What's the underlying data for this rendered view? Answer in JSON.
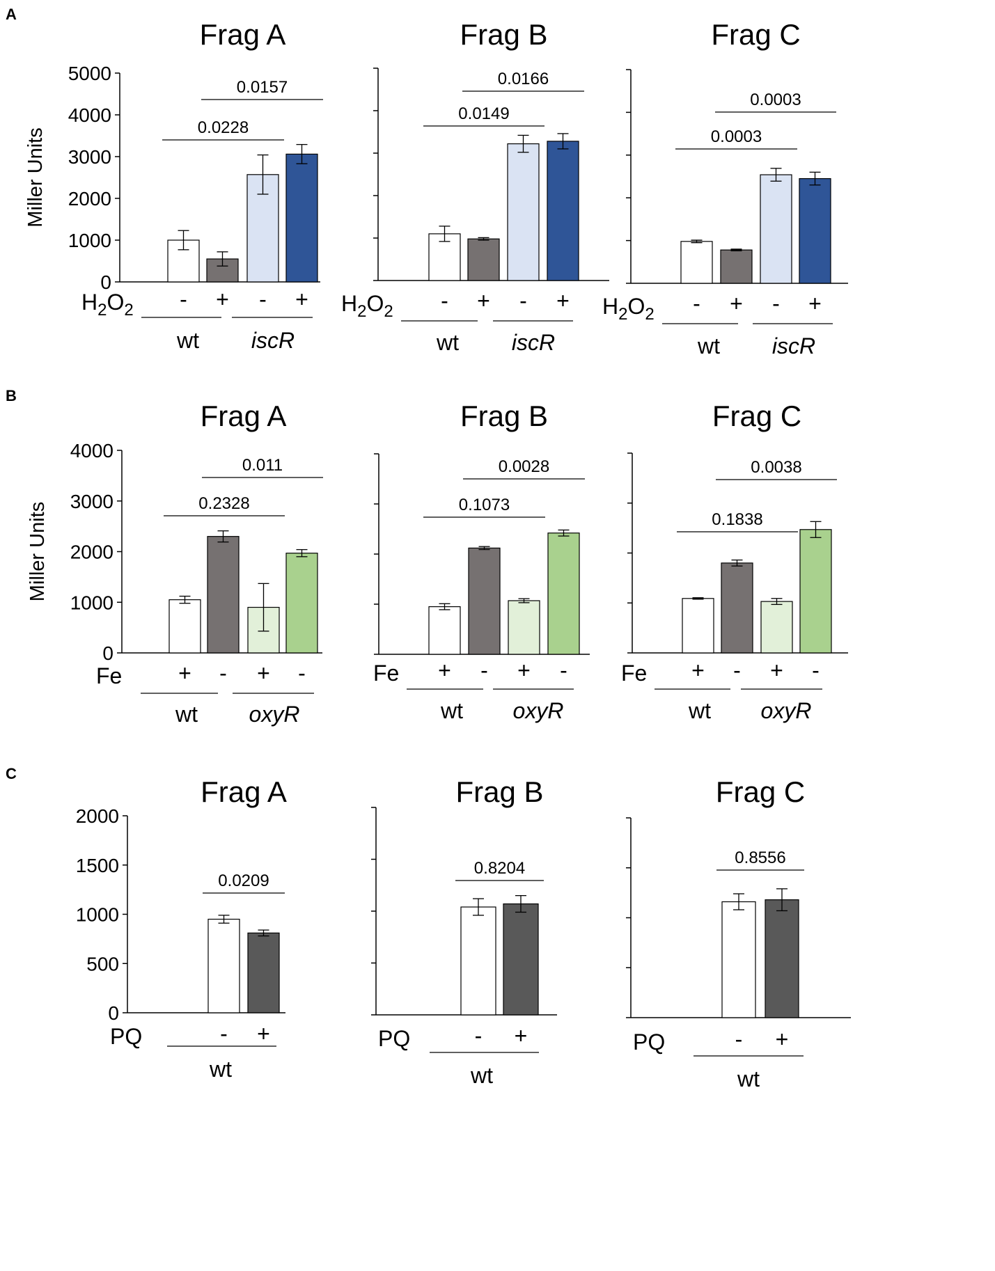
{
  "panels": [
    {
      "letter": "A",
      "condition": "H2O2",
      "signs": [
        "-",
        "+",
        "-",
        "+"
      ],
      "genotypes": [
        "wt",
        "iscR"
      ],
      "ylabel": "Miller Units"
    },
    {
      "letter": "B",
      "condition": "Fe",
      "signs": [
        "+",
        "-",
        "+",
        "-"
      ],
      "genotypes": [
        "wt",
        "oxyR"
      ],
      "ylabel": "Miller Units"
    },
    {
      "letter": "C",
      "condition": "PQ",
      "signs": [
        "-",
        "+"
      ],
      "genotypes": [
        "wt"
      ],
      "ylabel": ""
    }
  ],
  "colors": {
    "white": "#ffffff",
    "gray": "#767171",
    "darkgray": "#595959",
    "lightblue": "#dae3f3",
    "blue": "#2f5597",
    "lightgreen": "#e2f0d9",
    "green": "#a9d18e"
  },
  "chart_data": [
    {
      "panel": "A",
      "type": "bar",
      "title": "Frag A",
      "ylabel": "Miller Units",
      "ylim": [
        0,
        5000
      ],
      "yticks": [
        0,
        1000,
        2000,
        3000,
        4000,
        5000
      ],
      "show_tick_labels": true,
      "categories": [
        "wt -",
        "wt +",
        "iscR -",
        "iscR +"
      ],
      "values": [
        1000,
        550,
        2570,
        3060
      ],
      "errors": [
        230,
        170,
        470,
        230
      ],
      "fills": [
        "white",
        "gray",
        "lightblue",
        "blue"
      ],
      "comparisons": [
        {
          "from": 0,
          "to": 2,
          "label": "0.0228"
        },
        {
          "from": 1,
          "to": 3,
          "label": "0.0157"
        }
      ]
    },
    {
      "panel": "A",
      "type": "bar",
      "title": "Frag B",
      "ylabel": "",
      "ylim": [
        0,
        5000
      ],
      "yticks": [
        0,
        1000,
        2000,
        3000,
        4000,
        5000
      ],
      "show_tick_labels": false,
      "categories": [
        "wt -",
        "wt +",
        "iscR -",
        "iscR +"
      ],
      "values": [
        1100,
        980,
        3220,
        3280
      ],
      "errors": [
        180,
        30,
        200,
        180
      ],
      "fills": [
        "white",
        "gray",
        "lightblue",
        "blue"
      ],
      "comparisons": [
        {
          "from": 0,
          "to": 2,
          "label": "0.0149"
        },
        {
          "from": 1,
          "to": 3,
          "label": "0.0166"
        }
      ]
    },
    {
      "panel": "A",
      "type": "bar",
      "title": "Frag C",
      "ylabel": "",
      "ylim": [
        0,
        5000
      ],
      "yticks": [
        0,
        1000,
        2000,
        3000,
        4000,
        5000
      ],
      "show_tick_labels": false,
      "categories": [
        "wt -",
        "wt +",
        "iscR -",
        "iscR +"
      ],
      "values": [
        980,
        780,
        2540,
        2450
      ],
      "errors": [
        30,
        20,
        150,
        150
      ],
      "fills": [
        "white",
        "gray",
        "lightblue",
        "blue"
      ],
      "comparisons": [
        {
          "from": 0,
          "to": 2,
          "label": "0.0003"
        },
        {
          "from": 1,
          "to": 3,
          "label": "0.0003"
        }
      ]
    },
    {
      "panel": "B",
      "type": "bar",
      "title": "Frag A",
      "ylabel": "Miller Units",
      "ylim": [
        0,
        4000
      ],
      "yticks": [
        0,
        1000,
        2000,
        3000,
        4000
      ],
      "show_tick_labels": true,
      "categories": [
        "wt +",
        "wt -",
        "oxyR +",
        "oxyR -"
      ],
      "values": [
        1050,
        2300,
        900,
        1970
      ],
      "errors": [
        70,
        110,
        470,
        70
      ],
      "fills": [
        "white",
        "gray",
        "lightgreen",
        "green"
      ],
      "comparisons": [
        {
          "from": 0,
          "to": 2,
          "label": "0.2328"
        },
        {
          "from": 1,
          "to": 3,
          "label": "0.011"
        }
      ]
    },
    {
      "panel": "B",
      "type": "bar",
      "title": "Frag B",
      "ylabel": "",
      "ylim": [
        0,
        4000
      ],
      "yticks": [
        0,
        1000,
        2000,
        3000,
        4000
      ],
      "show_tick_labels": false,
      "categories": [
        "wt +",
        "wt -",
        "oxyR +",
        "oxyR -"
      ],
      "values": [
        950,
        2120,
        1070,
        2420
      ],
      "errors": [
        60,
        30,
        40,
        60
      ],
      "fills": [
        "white",
        "gray",
        "lightgreen",
        "green"
      ],
      "comparisons": [
        {
          "from": 0,
          "to": 2,
          "label": "0.1073"
        },
        {
          "from": 1,
          "to": 3,
          "label": "0.0028"
        }
      ]
    },
    {
      "panel": "B",
      "type": "bar",
      "title": "Frag C",
      "ylabel": "",
      "ylim": [
        0,
        4000
      ],
      "yticks": [
        0,
        1000,
        2000,
        3000,
        4000
      ],
      "show_tick_labels": false,
      "categories": [
        "wt +",
        "wt -",
        "oxyR +",
        "oxyR -"
      ],
      "values": [
        1090,
        1800,
        1030,
        2470
      ],
      "errors": [
        15,
        60,
        60,
        160
      ],
      "fills": [
        "white",
        "gray",
        "lightgreen",
        "green"
      ],
      "comparisons": [
        {
          "from": 0,
          "to": 2,
          "label": "0.1838"
        },
        {
          "from": 1,
          "to": 3,
          "label": "0.0038"
        }
      ]
    },
    {
      "panel": "C",
      "type": "bar",
      "title": "Frag A",
      "ylabel": "",
      "ylim": [
        0,
        2000
      ],
      "yticks": [
        0,
        500,
        1000,
        1500,
        2000
      ],
      "show_tick_labels": true,
      "categories": [
        "wt -",
        "wt +"
      ],
      "values": [
        950,
        810
      ],
      "errors": [
        40,
        30
      ],
      "fills": [
        "white",
        "darkgray"
      ],
      "comparisons": [
        {
          "from": 0,
          "to": 1,
          "label": "0.0209"
        }
      ]
    },
    {
      "panel": "C",
      "type": "bar",
      "title": "Frag B",
      "ylabel": "",
      "ylim": [
        0,
        2000
      ],
      "yticks": [
        0,
        500,
        1000,
        1500,
        2000
      ],
      "show_tick_labels": false,
      "categories": [
        "wt -",
        "wt +"
      ],
      "values": [
        1040,
        1070
      ],
      "errors": [
        80,
        80
      ],
      "fills": [
        "white",
        "darkgray"
      ],
      "comparisons": [
        {
          "from": 0,
          "to": 1,
          "label": "0.8204"
        }
      ]
    },
    {
      "panel": "C",
      "type": "bar",
      "title": "Frag C",
      "ylabel": "",
      "ylim": [
        0,
        2000
      ],
      "yticks": [
        0,
        500,
        1000,
        1500,
        2000
      ],
      "show_tick_labels": false,
      "categories": [
        "wt -",
        "wt +"
      ],
      "values": [
        1160,
        1180
      ],
      "errors": [
        80,
        110
      ],
      "fills": [
        "white",
        "darkgray"
      ],
      "comparisons": [
        {
          "from": 0,
          "to": 1,
          "label": "0.8556"
        }
      ]
    }
  ]
}
